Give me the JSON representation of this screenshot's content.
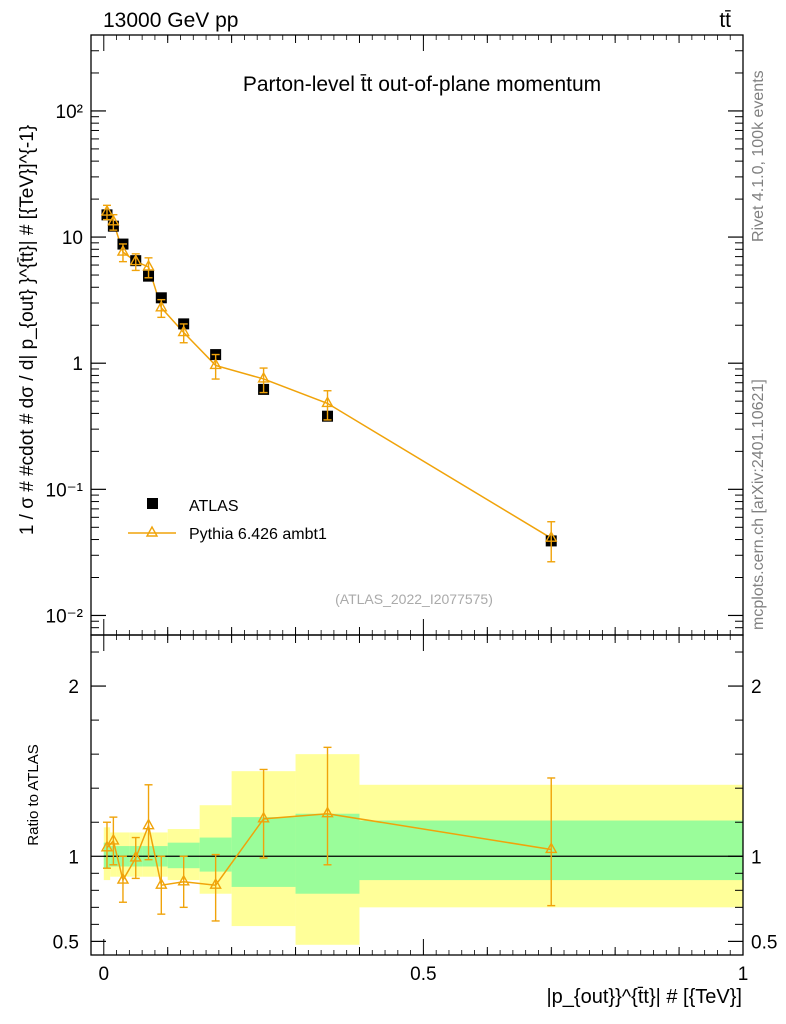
{
  "header": {
    "left": "13000 GeV pp",
    "right": "tt̄"
  },
  "side_labels": {
    "rivet": "Rivet 4.1.0,  100k events",
    "mcplots": "mcplots.cern.ch [arXiv:2401.10621]"
  },
  "colors": {
    "data": "#000000",
    "mc": "#f0a30a",
    "band_inner": "#9afd9a",
    "band_outer": "#ffff99"
  },
  "chart_data": [
    {
      "type": "scatter",
      "panel": "main",
      "title": "Parton-level t̄t out-of-plane momentum",
      "ylabel": "1 / σ # #cdot # dσ / d| p_{out} }^{t̄t}| # [{TeV}]^{-1}",
      "yscale": "log",
      "ylim": [
        0.007,
        400
      ],
      "xlim": [
        -0.02,
        1.0
      ],
      "y_ticks": [
        {
          "value": 0.01,
          "label": "10⁻²"
        },
        {
          "value": 0.1,
          "label": "10⁻¹"
        },
        {
          "value": 1,
          "label": "1"
        },
        {
          "value": 10,
          "label": "10"
        },
        {
          "value": 100,
          "label": "10²"
        }
      ],
      "watermark": "(ATLAS_2022_I2077575)",
      "legend": {
        "position": "lower-left",
        "entries": [
          "ATLAS",
          "Pythia 6.426 ambt1"
        ]
      },
      "bins": [
        [
          0,
          0.01
        ],
        [
          0.01,
          0.02
        ],
        [
          0.02,
          0.04
        ],
        [
          0.04,
          0.06
        ],
        [
          0.06,
          0.08
        ],
        [
          0.08,
          0.1
        ],
        [
          0.1,
          0.15
        ],
        [
          0.15,
          0.2
        ],
        [
          0.2,
          0.3
        ],
        [
          0.3,
          0.4
        ],
        [
          0.4,
          1.0
        ]
      ],
      "series": [
        {
          "name": "ATLAS",
          "marker": "square",
          "x": [
            0.005,
            0.015,
            0.03,
            0.05,
            0.07,
            0.09,
            0.125,
            0.175,
            0.25,
            0.35,
            0.7
          ],
          "y": [
            15.0,
            12.2,
            8.8,
            6.5,
            4.9,
            3.3,
            2.05,
            1.17,
            0.62,
            0.38,
            0.039
          ]
        },
        {
          "name": "Pythia 6.426 ambt1",
          "marker": "triangle",
          "x": [
            0.005,
            0.015,
            0.03,
            0.05,
            0.07,
            0.09,
            0.125,
            0.175,
            0.25,
            0.35,
            0.7
          ],
          "y": [
            15.8,
            13.2,
            7.6,
            6.4,
            5.8,
            2.75,
            1.75,
            0.96,
            0.75,
            0.48,
            0.041
          ],
          "yerr_rel": [
            0.13,
            0.14,
            0.16,
            0.15,
            0.18,
            0.16,
            0.17,
            0.22,
            0.22,
            0.26,
            0.35
          ]
        }
      ]
    },
    {
      "type": "line",
      "panel": "ratio",
      "ylabel": "Ratio to ATLAS",
      "xlabel": "|p_{out}}^{t̄t}| # [{TeV}]",
      "ylim": [
        0.42,
        2.3
      ],
      "xlim": [
        -0.02,
        1.0
      ],
      "y_ticks": [
        {
          "value": 0.5,
          "label": "0.5"
        },
        {
          "value": 1,
          "label": "1"
        },
        {
          "value": 2,
          "label": "2"
        }
      ],
      "x_ticks": [
        {
          "value": 0,
          "label": "0"
        },
        {
          "value": 0.5,
          "label": "0.5"
        },
        {
          "value": 1,
          "label": "1"
        }
      ],
      "bands": {
        "bins": [
          [
            0,
            0.01
          ],
          [
            0.01,
            0.02
          ],
          [
            0.02,
            0.04
          ],
          [
            0.04,
            0.06
          ],
          [
            0.06,
            0.08
          ],
          [
            0.08,
            0.1
          ],
          [
            0.1,
            0.15
          ],
          [
            0.15,
            0.2
          ],
          [
            0.2,
            0.3
          ],
          [
            0.3,
            0.4
          ],
          [
            0.4,
            1.0
          ]
        ],
        "inner": [
          [
            0.93,
            1.08
          ],
          [
            0.94,
            1.06
          ],
          [
            0.94,
            1.06
          ],
          [
            0.94,
            1.06
          ],
          [
            0.94,
            1.06
          ],
          [
            0.94,
            1.06
          ],
          [
            0.93,
            1.08
          ],
          [
            0.91,
            1.11
          ],
          [
            0.82,
            1.23
          ],
          [
            0.78,
            1.25
          ],
          [
            0.86,
            1.21
          ]
        ],
        "outer": [
          [
            0.86,
            1.17
          ],
          [
            0.88,
            1.14
          ],
          [
            0.88,
            1.14
          ],
          [
            0.88,
            1.14
          ],
          [
            0.88,
            1.14
          ],
          [
            0.88,
            1.14
          ],
          [
            0.86,
            1.16
          ],
          [
            0.78,
            1.3
          ],
          [
            0.59,
            1.5
          ],
          [
            0.48,
            1.6
          ],
          [
            0.7,
            1.42
          ]
        ]
      },
      "series": [
        {
          "name": "Pythia 6.426 ambt1",
          "x": [
            0.005,
            0.015,
            0.03,
            0.05,
            0.07,
            0.09,
            0.125,
            0.175,
            0.25,
            0.35,
            0.7
          ],
          "y": [
            1.05,
            1.09,
            0.86,
            0.99,
            1.18,
            0.83,
            0.85,
            0.83,
            1.22,
            1.25,
            1.04
          ],
          "yerr": [
            [
              0.93,
              1.2
            ],
            [
              0.95,
              1.23
            ],
            [
              0.73,
              1.0
            ],
            [
              0.87,
              1.11
            ],
            [
              0.98,
              1.42
            ],
            [
              0.66,
              1.0
            ],
            [
              0.7,
              1.0
            ],
            [
              0.62,
              1.01
            ],
            [
              0.99,
              1.51
            ],
            [
              0.95,
              1.64
            ],
            [
              0.71,
              1.46
            ]
          ]
        }
      ]
    }
  ]
}
